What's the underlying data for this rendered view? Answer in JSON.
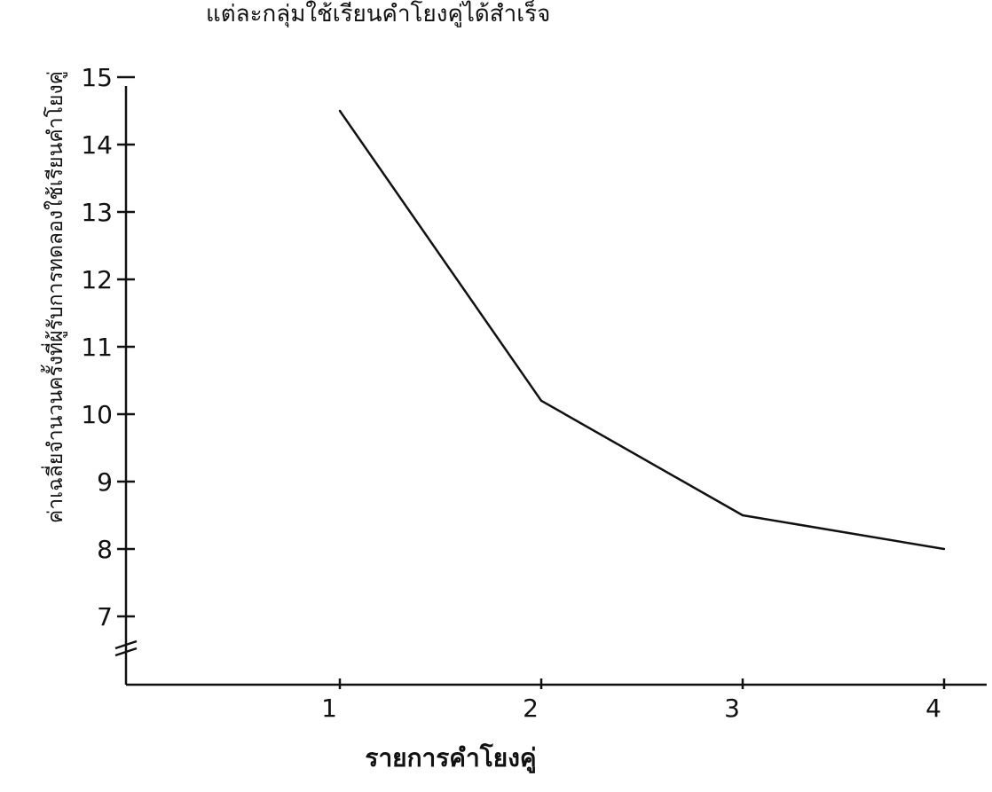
{
  "chart_data": {
    "type": "line",
    "title": "แต่ละกลุ่มใช้เรียนคำโยงคู่ได้สำเร็จ",
    "xlabel": "รายการคำโยงคู่",
    "ylabel": "ค่าเฉลี่ยจำนวนครั้งที่ผู้รับการทดลองใช้เรียนคำโยงคู่",
    "x_ticks": [
      "1",
      "2",
      "3",
      "4"
    ],
    "y_ticks": [
      "7",
      "8",
      "9",
      "10",
      "11",
      "12",
      "13",
      "14",
      "15"
    ],
    "ylim": [
      7,
      15
    ],
    "axis_break": true,
    "grid": false,
    "series": [
      {
        "x": [
          1,
          2,
          3,
          4
        ],
        "values": [
          14.5,
          10.2,
          8.5,
          8.0
        ]
      }
    ]
  },
  "colors": {
    "line": "#111111",
    "axis": "#111111",
    "background": "#ffffff"
  }
}
